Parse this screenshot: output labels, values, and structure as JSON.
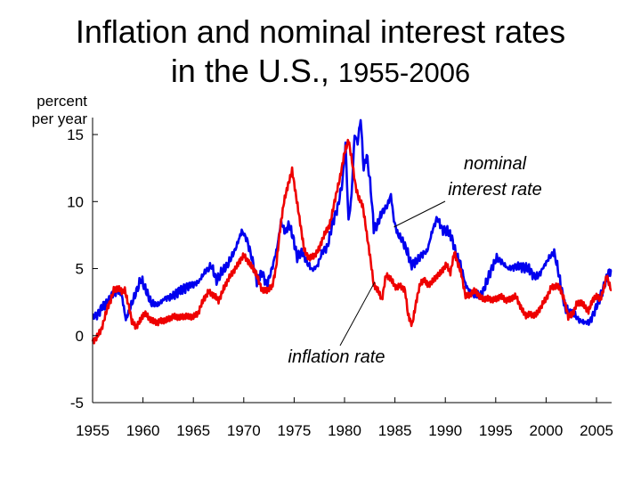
{
  "chart_data": {
    "type": "line",
    "title_line1": "Inflation and nominal interest rates",
    "title_line2": "in the U.S.,",
    "title_years": "1955-2006",
    "ylabel_line1": "percent",
    "ylabel_line2": "per year",
    "xlim": [
      1955,
      2006.5
    ],
    "ylim": [
      -5,
      16
    ],
    "yticks": [
      -5,
      0,
      5,
      10,
      15
    ],
    "xticks": [
      1955,
      1960,
      1965,
      1970,
      1975,
      1980,
      1985,
      1990,
      1995,
      2000,
      2005
    ],
    "grid": false,
    "legend": "none",
    "annotations": [
      {
        "text_line1": "nominal",
        "text_line2": "interest rate",
        "series": "nominal"
      },
      {
        "text_line1": "inflation rate",
        "series": "inflation"
      }
    ],
    "series": [
      {
        "key": "nominal",
        "color": "#0000ee",
        "points": [
          [
            1955.0,
            1.4
          ],
          [
            1955.5,
            1.6
          ],
          [
            1956.0,
            2.2
          ],
          [
            1956.5,
            2.5
          ],
          [
            1957.0,
            3.1
          ],
          [
            1957.5,
            3.4
          ],
          [
            1957.9,
            3.0
          ],
          [
            1958.3,
            1.2
          ],
          [
            1958.7,
            2.0
          ],
          [
            1959.2,
            3.0
          ],
          [
            1959.8,
            4.2
          ],
          [
            1960.3,
            3.4
          ],
          [
            1960.8,
            2.4
          ],
          [
            1961.5,
            2.3
          ],
          [
            1962.2,
            2.8
          ],
          [
            1962.8,
            2.9
          ],
          [
            1963.5,
            3.3
          ],
          [
            1964.2,
            3.6
          ],
          [
            1964.8,
            3.8
          ],
          [
            1965.5,
            4.0
          ],
          [
            1966.2,
            4.8
          ],
          [
            1966.8,
            5.2
          ],
          [
            1967.3,
            4.1
          ],
          [
            1967.9,
            4.8
          ],
          [
            1968.5,
            5.4
          ],
          [
            1969.2,
            6.5
          ],
          [
            1969.8,
            7.8
          ],
          [
            1970.3,
            7.2
          ],
          [
            1970.8,
            5.8
          ],
          [
            1971.3,
            4.1
          ],
          [
            1971.8,
            4.7
          ],
          [
            1972.3,
            3.8
          ],
          [
            1972.8,
            5.0
          ],
          [
            1973.3,
            6.5
          ],
          [
            1973.7,
            8.5
          ],
          [
            1974.1,
            7.7
          ],
          [
            1974.5,
            8.3
          ],
          [
            1974.9,
            7.3
          ],
          [
            1975.3,
            5.8
          ],
          [
            1975.8,
            6.2
          ],
          [
            1976.3,
            5.4
          ],
          [
            1976.8,
            4.9
          ],
          [
            1977.3,
            5.2
          ],
          [
            1977.8,
            6.3
          ],
          [
            1978.3,
            6.6
          ],
          [
            1978.8,
            8.4
          ],
          [
            1979.3,
            9.5
          ],
          [
            1979.8,
            11.5
          ],
          [
            1980.1,
            14.2
          ],
          [
            1980.4,
            8.5
          ],
          [
            1980.7,
            10.5
          ],
          [
            1981.0,
            15.0
          ],
          [
            1981.3,
            14.4
          ],
          [
            1981.6,
            16.2
          ],
          [
            1981.9,
            12.4
          ],
          [
            1982.2,
            13.5
          ],
          [
            1982.6,
            11.0
          ],
          [
            1982.9,
            8.0
          ],
          [
            1983.3,
            8.3
          ],
          [
            1983.7,
            9.2
          ],
          [
            1984.2,
            9.6
          ],
          [
            1984.6,
            10.5
          ],
          [
            1984.9,
            8.6
          ],
          [
            1985.3,
            7.5
          ],
          [
            1985.7,
            7.2
          ],
          [
            1986.2,
            6.3
          ],
          [
            1986.6,
            5.3
          ],
          [
            1987.1,
            5.5
          ],
          [
            1987.6,
            6.0
          ],
          [
            1988.2,
            6.3
          ],
          [
            1988.7,
            7.8
          ],
          [
            1989.2,
            8.8
          ],
          [
            1989.7,
            7.9
          ],
          [
            1990.2,
            7.8
          ],
          [
            1990.6,
            7.4
          ],
          [
            1991.1,
            6.0
          ],
          [
            1991.5,
            5.4
          ],
          [
            1992.0,
            3.8
          ],
          [
            1992.5,
            3.2
          ],
          [
            1993.0,
            3.0
          ],
          [
            1993.6,
            3.0
          ],
          [
            1994.1,
            4.0
          ],
          [
            1994.6,
            5.0
          ],
          [
            1995.1,
            5.8
          ],
          [
            1995.6,
            5.5
          ],
          [
            1996.2,
            5.0
          ],
          [
            1996.7,
            5.1
          ],
          [
            1997.3,
            5.2
          ],
          [
            1997.8,
            5.1
          ],
          [
            1998.3,
            5.0
          ],
          [
            1998.8,
            4.4
          ],
          [
            1999.3,
            4.5
          ],
          [
            1999.8,
            5.2
          ],
          [
            2000.3,
            5.8
          ],
          [
            2000.8,
            6.2
          ],
          [
            2001.1,
            5.2
          ],
          [
            2001.5,
            3.6
          ],
          [
            2001.9,
            2.0
          ],
          [
            2002.3,
            1.7
          ],
          [
            2002.8,
            1.6
          ],
          [
            2003.3,
            1.1
          ],
          [
            2003.8,
            1.0
          ],
          [
            2004.3,
            1.0
          ],
          [
            2004.8,
            1.8
          ],
          [
            2005.3,
            2.8
          ],
          [
            2005.8,
            3.8
          ],
          [
            2006.2,
            4.7
          ],
          [
            2006.5,
            4.9
          ]
        ]
      },
      {
        "key": "inflation",
        "color": "#ee0000",
        "points": [
          [
            1955.0,
            -0.6
          ],
          [
            1955.3,
            -0.3
          ],
          [
            1955.6,
            0.1
          ],
          [
            1955.9,
            0.4
          ],
          [
            1956.2,
            1.2
          ],
          [
            1956.5,
            2.1
          ],
          [
            1956.8,
            2.7
          ],
          [
            1957.1,
            3.5
          ],
          [
            1957.5,
            3.5
          ],
          [
            1957.9,
            3.4
          ],
          [
            1958.2,
            3.6
          ],
          [
            1958.6,
            2.3
          ],
          [
            1958.9,
            1.1
          ],
          [
            1959.3,
            0.8
          ],
          [
            1959.7,
            1.3
          ],
          [
            1960.1,
            1.7
          ],
          [
            1960.6,
            1.4
          ],
          [
            1961.0,
            1.2
          ],
          [
            1961.5,
            0.9
          ],
          [
            1962.0,
            1.1
          ],
          [
            1962.5,
            1.2
          ],
          [
            1963.0,
            1.2
          ],
          [
            1963.5,
            1.3
          ],
          [
            1964.0,
            1.3
          ],
          [
            1964.5,
            1.2
          ],
          [
            1965.0,
            1.4
          ],
          [
            1965.5,
            1.6
          ],
          [
            1966.0,
            2.6
          ],
          [
            1966.5,
            3.4
          ],
          [
            1967.0,
            3.0
          ],
          [
            1967.5,
            2.7
          ],
          [
            1968.0,
            3.7
          ],
          [
            1968.5,
            4.3
          ],
          [
            1969.0,
            5.0
          ],
          [
            1969.5,
            5.6
          ],
          [
            1970.0,
            6.0
          ],
          [
            1970.5,
            5.6
          ],
          [
            1970.9,
            5.1
          ],
          [
            1971.3,
            4.4
          ],
          [
            1971.8,
            3.4
          ],
          [
            1972.3,
            3.3
          ],
          [
            1972.8,
            3.4
          ],
          [
            1973.2,
            5.0
          ],
          [
            1973.6,
            7.8
          ],
          [
            1974.0,
            9.8
          ],
          [
            1974.4,
            11.2
          ],
          [
            1974.8,
            12.3
          ],
          [
            1975.2,
            10.2
          ],
          [
            1975.6,
            8.4
          ],
          [
            1976.0,
            6.5
          ],
          [
            1976.5,
            5.7
          ],
          [
            1977.0,
            6.1
          ],
          [
            1977.5,
            6.7
          ],
          [
            1978.0,
            7.6
          ],
          [
            1978.5,
            8.4
          ],
          [
            1979.0,
            10.1
          ],
          [
            1979.5,
            11.6
          ],
          [
            1980.0,
            13.8
          ],
          [
            1980.4,
            14.6
          ],
          [
            1980.8,
            12.6
          ],
          [
            1981.1,
            11.1
          ],
          [
            1981.4,
            10.3
          ],
          [
            1981.8,
            9.6
          ],
          [
            1982.2,
            7.4
          ],
          [
            1982.6,
            5.5
          ],
          [
            1982.9,
            3.7
          ],
          [
            1983.3,
            3.2
          ],
          [
            1983.7,
            2.5
          ],
          [
            1984.1,
            4.5
          ],
          [
            1984.5,
            4.2
          ],
          [
            1985.0,
            3.6
          ],
          [
            1985.5,
            3.8
          ],
          [
            1986.0,
            3.4
          ],
          [
            1986.3,
            1.6
          ],
          [
            1986.7,
            1.0
          ],
          [
            1987.1,
            2.6
          ],
          [
            1987.5,
            3.9
          ],
          [
            1987.9,
            4.4
          ],
          [
            1988.3,
            3.9
          ],
          [
            1988.8,
            4.1
          ],
          [
            1989.2,
            4.6
          ],
          [
            1989.7,
            4.9
          ],
          [
            1990.1,
            5.2
          ],
          [
            1990.5,
            4.7
          ],
          [
            1990.9,
            6.2
          ],
          [
            1991.2,
            5.3
          ],
          [
            1991.6,
            4.4
          ],
          [
            1992.0,
            2.9
          ],
          [
            1992.5,
            2.9
          ],
          [
            1993.0,
            3.2
          ],
          [
            1993.5,
            2.8
          ],
          [
            1994.0,
            2.6
          ],
          [
            1994.5,
            2.7
          ],
          [
            1995.0,
            2.8
          ],
          [
            1995.5,
            2.9
          ],
          [
            1996.0,
            2.8
          ],
          [
            1996.5,
            2.9
          ],
          [
            1997.0,
            3.0
          ],
          [
            1997.5,
            2.3
          ],
          [
            1998.0,
            1.6
          ],
          [
            1998.5,
            1.6
          ],
          [
            1999.0,
            1.7
          ],
          [
            1999.5,
            2.1
          ],
          [
            2000.0,
            2.7
          ],
          [
            2000.5,
            3.6
          ],
          [
            2001.0,
            3.5
          ],
          [
            2001.4,
            3.4
          ],
          [
            2001.8,
            2.6
          ],
          [
            2002.2,
            1.2
          ],
          [
            2002.6,
            1.4
          ],
          [
            2003.0,
            2.3
          ],
          [
            2003.4,
            2.4
          ],
          [
            2003.8,
            2.1
          ],
          [
            2004.2,
            1.9
          ],
          [
            2004.6,
            2.7
          ],
          [
            2005.0,
            2.9
          ],
          [
            2005.4,
            2.9
          ],
          [
            2005.8,
            3.9
          ],
          [
            2006.0,
            4.6
          ],
          [
            2006.3,
            3.8
          ],
          [
            2006.5,
            3.4
          ]
        ]
      }
    ]
  }
}
